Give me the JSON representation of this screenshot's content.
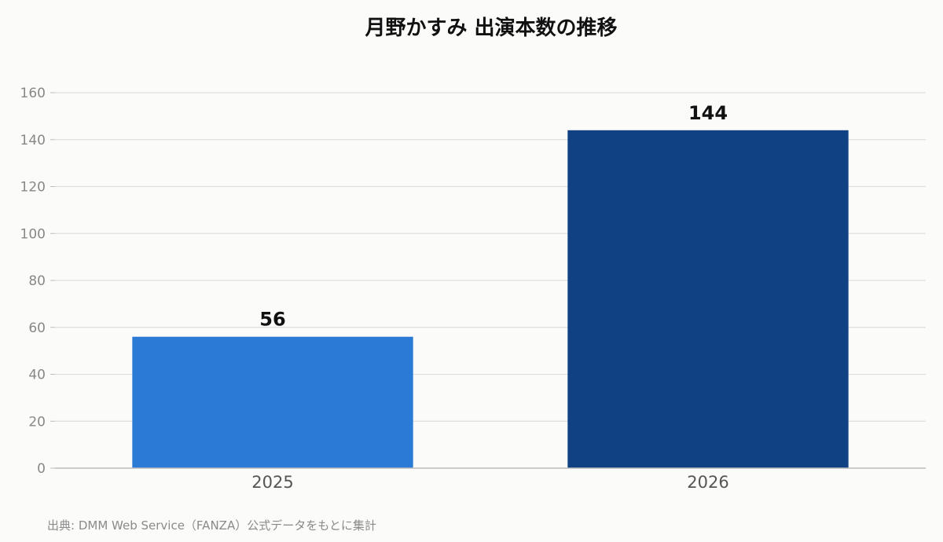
{
  "chart_data": {
    "type": "bar",
    "title": "月野かすみ 出演本数の推移",
    "categories": [
      "2025",
      "2026"
    ],
    "values": [
      56,
      144
    ],
    "colors": [
      "#2a7ad6",
      "#0f4183"
    ],
    "ylim": [
      0,
      160
    ],
    "yticks": [
      0,
      20,
      40,
      60,
      80,
      100,
      120,
      140,
      160
    ],
    "xlabel": "",
    "ylabel": "",
    "grid": true,
    "legend": "none",
    "data_labels": true
  },
  "source_note": "出典: DMM Web Service（FANZA）公式データをもとに集計"
}
